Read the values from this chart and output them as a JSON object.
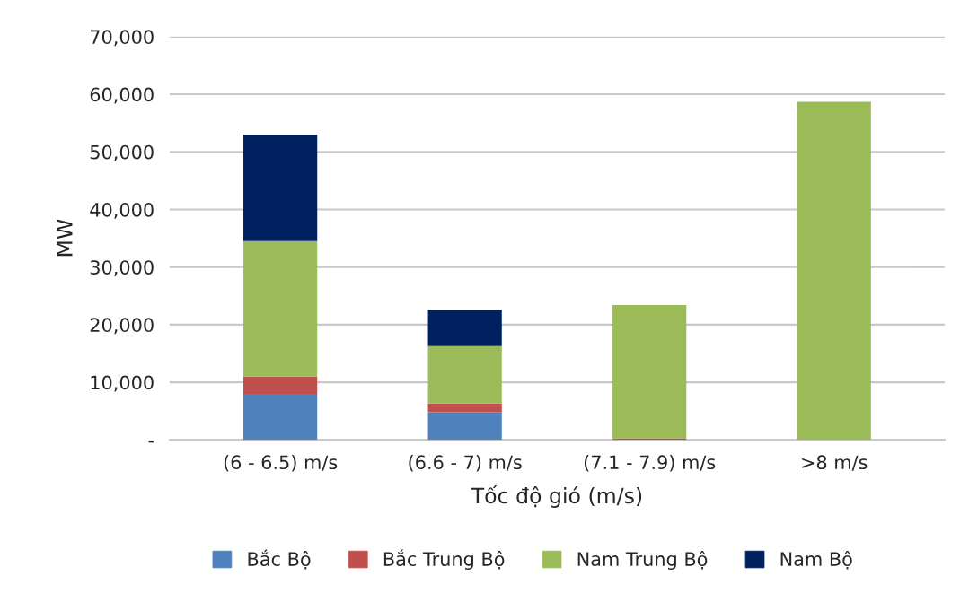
{
  "chart_data": {
    "type": "bar",
    "stacked": true,
    "xlabel": "Tốc độ gió (m/s)",
    "ylabel": "MW",
    "categories": [
      "(6 - 6.5) m/s",
      "(6.6 - 7) m/s",
      "(7.1 - 7.9) m/s",
      ">8 m/s"
    ],
    "series": [
      {
        "name": "Bắc Bộ",
        "color": "#4f81bd",
        "values": [
          8000,
          4800,
          null,
          null
        ]
      },
      {
        "name": "Bắc Trung Bộ",
        "color": "#c0504d",
        "values": [
          3000,
          1500,
          300,
          null
        ]
      },
      {
        "name": "Nam Trung Bộ",
        "color": "#9bbb59",
        "values": [
          23500,
          10000,
          23100,
          58700
        ]
      },
      {
        "name": "Nam Bộ",
        "color": "#002060",
        "values": [
          18500,
          6300,
          null,
          null
        ]
      }
    ],
    "ylim": [
      0,
      70000
    ],
    "yticks": [
      {
        "value": 0,
        "label": "-"
      },
      {
        "value": 10000,
        "label": "10,000"
      },
      {
        "value": 20000,
        "label": "20,000"
      },
      {
        "value": 30000,
        "label": "30,000"
      },
      {
        "value": 40000,
        "label": "40,000"
      },
      {
        "value": 50000,
        "label": "50,000"
      },
      {
        "value": 60000,
        "label": "60,000"
      },
      {
        "value": 70000,
        "label": "70,000"
      }
    ],
    "grid": "y",
    "legend": "bottom"
  }
}
